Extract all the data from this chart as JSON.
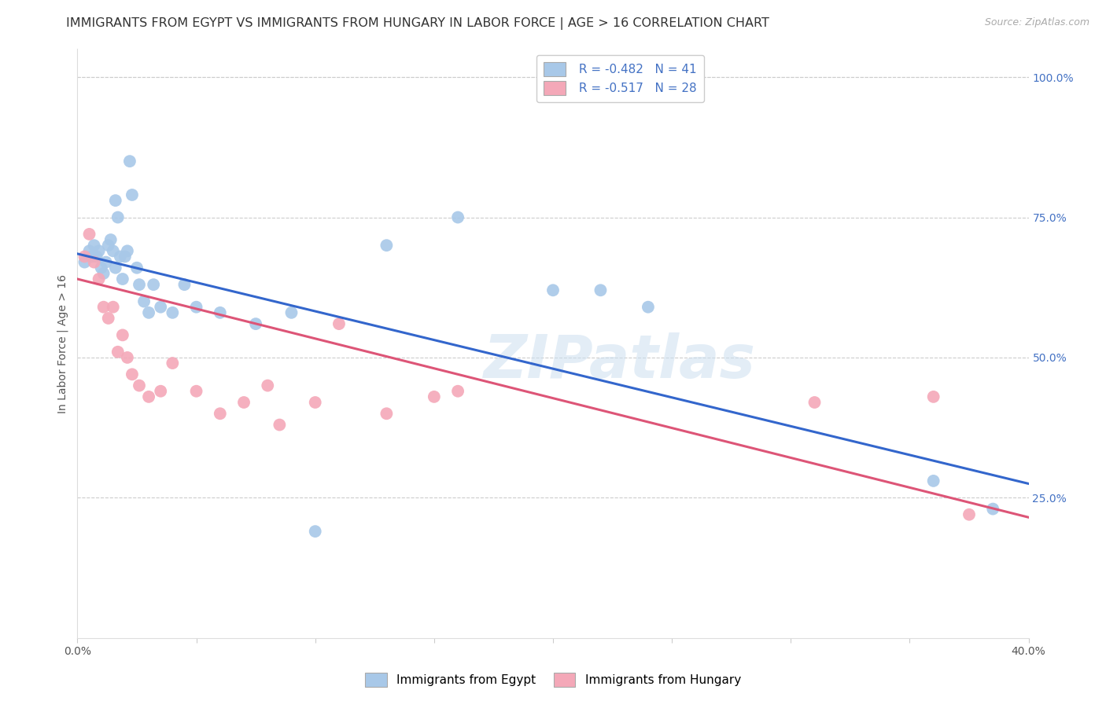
{
  "title": "IMMIGRANTS FROM EGYPT VS IMMIGRANTS FROM HUNGARY IN LABOR FORCE | AGE > 16 CORRELATION CHART",
  "source": "Source: ZipAtlas.com",
  "ylabel": "In Labor Force | Age > 16",
  "xlim": [
    0.0,
    0.4
  ],
  "ylim": [
    0.0,
    1.05
  ],
  "xtick_positions": [
    0.0,
    0.05,
    0.1,
    0.15,
    0.2,
    0.25,
    0.3,
    0.35,
    0.4
  ],
  "xtick_labels": [
    "0.0%",
    "",
    "",
    "",
    "",
    "",
    "",
    "",
    "40.0%"
  ],
  "ytick_positions": [
    0.0,
    0.25,
    0.5,
    0.75,
    1.0
  ],
  "ytick_labels": [
    "",
    "25.0%",
    "50.0%",
    "75.0%",
    "100.0%"
  ],
  "legend_egypt_R": "R = ",
  "legend_egypt_Rval": "-0.482",
  "legend_egypt_N": "   N = ",
  "legend_egypt_Nval": "41",
  "legend_hungary_R": "R = ",
  "legend_hungary_Rval": "-0.517",
  "legend_hungary_N": "   N = ",
  "legend_hungary_Nval": "28",
  "egypt_color": "#a8c8e8",
  "hungary_color": "#f4a8b8",
  "egypt_line_color": "#3366cc",
  "hungary_line_color": "#dd5577",
  "watermark": "ZIPatlas",
  "egypt_scatter_x": [
    0.003,
    0.005,
    0.006,
    0.007,
    0.008,
    0.009,
    0.01,
    0.011,
    0.012,
    0.013,
    0.014,
    0.015,
    0.016,
    0.016,
    0.017,
    0.018,
    0.019,
    0.02,
    0.021,
    0.022,
    0.023,
    0.025,
    0.026,
    0.028,
    0.03,
    0.032,
    0.035,
    0.04,
    0.045,
    0.05,
    0.06,
    0.075,
    0.09,
    0.1,
    0.13,
    0.16,
    0.2,
    0.22,
    0.24,
    0.36,
    0.385
  ],
  "egypt_scatter_y": [
    0.67,
    0.69,
    0.68,
    0.7,
    0.68,
    0.69,
    0.66,
    0.65,
    0.67,
    0.7,
    0.71,
    0.69,
    0.66,
    0.78,
    0.75,
    0.68,
    0.64,
    0.68,
    0.69,
    0.85,
    0.79,
    0.66,
    0.63,
    0.6,
    0.58,
    0.63,
    0.59,
    0.58,
    0.63,
    0.59,
    0.58,
    0.56,
    0.58,
    0.19,
    0.7,
    0.75,
    0.62,
    0.62,
    0.59,
    0.28,
    0.23
  ],
  "hungary_scatter_x": [
    0.003,
    0.005,
    0.007,
    0.009,
    0.011,
    0.013,
    0.015,
    0.017,
    0.019,
    0.021,
    0.023,
    0.026,
    0.03,
    0.035,
    0.04,
    0.05,
    0.06,
    0.07,
    0.08,
    0.085,
    0.1,
    0.11,
    0.13,
    0.15,
    0.16,
    0.31,
    0.36,
    0.375
  ],
  "hungary_scatter_y": [
    0.68,
    0.72,
    0.67,
    0.64,
    0.59,
    0.57,
    0.59,
    0.51,
    0.54,
    0.5,
    0.47,
    0.45,
    0.43,
    0.44,
    0.49,
    0.44,
    0.4,
    0.42,
    0.45,
    0.38,
    0.42,
    0.56,
    0.4,
    0.43,
    0.44,
    0.42,
    0.43,
    0.22
  ],
  "egypt_trend_x0": 0.0,
  "egypt_trend_x1": 0.4,
  "egypt_trend_y0": 0.685,
  "egypt_trend_y1": 0.275,
  "hungary_trend_x0": 0.0,
  "hungary_trend_x1": 0.4,
  "hungary_trend_y0": 0.64,
  "hungary_trend_y1": 0.215,
  "background_color": "#ffffff",
  "grid_color": "#cccccc",
  "title_fontsize": 11.5,
  "axis_label_fontsize": 10,
  "tick_fontsize": 10,
  "legend_fontsize": 11
}
